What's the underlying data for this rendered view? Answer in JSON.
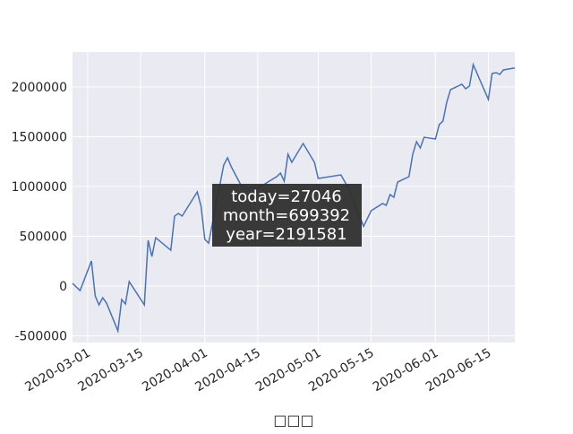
{
  "chart_data": {
    "type": "line",
    "x": [
      "2020-02-26",
      "2020-02-28",
      "2020-03-02",
      "2020-03-03",
      "2020-03-04",
      "2020-03-05",
      "2020-03-06",
      "2020-03-09",
      "2020-03-10",
      "2020-03-11",
      "2020-03-12",
      "2020-03-16",
      "2020-03-17",
      "2020-03-18",
      "2020-03-19",
      "2020-03-23",
      "2020-03-24",
      "2020-03-25",
      "2020-03-26",
      "2020-03-30",
      "2020-03-31",
      "2020-04-01",
      "2020-04-02",
      "2020-04-06",
      "2020-04-07",
      "2020-04-08",
      "2020-04-11",
      "2020-04-15",
      "2020-04-20",
      "2020-04-21",
      "2020-04-22",
      "2020-04-23",
      "2020-04-24",
      "2020-04-27",
      "2020-04-30",
      "2020-05-01",
      "2020-05-07",
      "2020-05-09",
      "2020-05-13",
      "2020-05-15",
      "2020-05-18",
      "2020-05-19",
      "2020-05-20",
      "2020-05-21",
      "2020-05-22",
      "2020-05-25",
      "2020-05-26",
      "2020-05-27",
      "2020-05-28",
      "2020-05-29",
      "2020-06-01",
      "2020-06-02",
      "2020-06-03",
      "2020-06-04",
      "2020-06-05",
      "2020-06-08",
      "2020-06-09",
      "2020-06-10",
      "2020-06-11",
      "2020-06-15",
      "2020-06-16",
      "2020-06-17",
      "2020-06-18",
      "2020-06-19",
      "2020-06-22"
    ],
    "series": [
      {
        "color": "#4c72b0",
        "values": [
          27000,
          -45000,
          252000,
          -99000,
          -189000,
          -117000,
          -171000,
          -450000,
          -135000,
          -180000,
          45000,
          -189000,
          459000,
          297000,
          486000,
          360000,
          703000,
          730000,
          703000,
          946000,
          802000,
          468000,
          432000,
          1216000,
          1288000,
          1198000,
          982000,
          982000,
          1099000,
          1135000,
          1054000,
          1324000,
          1243000,
          1432000,
          1243000,
          1081000,
          1117000,
          982000,
          600000,
          757000,
          829000,
          811000,
          919000,
          892000,
          1045000,
          1099000,
          1324000,
          1450000,
          1387000,
          1495000,
          1477000,
          1621000,
          1658000,
          1847000,
          1973000,
          2027000,
          1982000,
          2009000,
          2225000,
          1874000,
          2135000,
          2144000,
          2126000,
          2171000,
          2191581
        ]
      }
    ],
    "xlabel": "□□□",
    "xlim": [
      "2020-02-26",
      "2020-06-22"
    ],
    "xticks": [
      "2020-03-01",
      "2020-03-15",
      "2020-04-01",
      "2020-04-15",
      "2020-05-01",
      "2020-05-15",
      "2020-06-01",
      "2020-06-15"
    ],
    "ylim": [
      -567000,
      2351000
    ],
    "yticks": [
      -500000,
      0,
      500000,
      1000000,
      1500000,
      2000000
    ],
    "grid": true,
    "tooltip": [
      "today=27046",
      "month=699392",
      "year=2191581"
    ]
  }
}
